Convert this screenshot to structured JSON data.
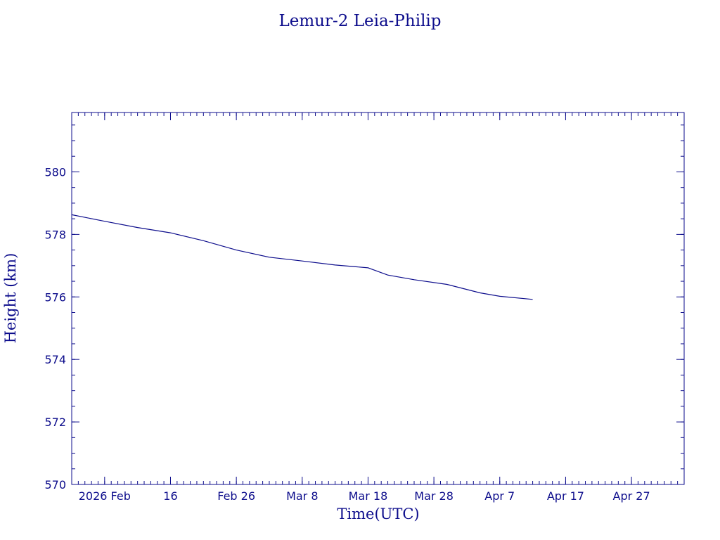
{
  "chart_data": {
    "type": "line",
    "title": "Lemur-2 Leia-Philip",
    "xlabel": "Time(UTC)",
    "ylabel": "Height (km)",
    "xlim": [
      "2026-02-01",
      "2026-05-05"
    ],
    "ylim": [
      570,
      581.9
    ],
    "x_tick_labels": [
      {
        "date": "2026-02-06",
        "label": "2026 Feb"
      },
      {
        "date": "2026-02-16",
        "label": "16"
      },
      {
        "date": "2026-02-26",
        "label": "Feb 26"
      },
      {
        "date": "2026-03-08",
        "label": "Mar  8"
      },
      {
        "date": "2026-03-18",
        "label": "Mar 18"
      },
      {
        "date": "2026-03-28",
        "label": "Mar 28"
      },
      {
        "date": "2026-04-07",
        "label": "Apr  7"
      },
      {
        "date": "2026-04-17",
        "label": "Apr 17"
      },
      {
        "date": "2026-04-27",
        "label": "Apr 27"
      }
    ],
    "y_ticks": [
      570,
      572,
      574,
      576,
      578,
      580
    ],
    "color": "#0d0d8c",
    "grid": false,
    "series": [
      {
        "x": [
          "2026-02-01",
          "2026-02-06",
          "2026-02-11",
          "2026-02-16",
          "2026-02-21",
          "2026-02-26",
          "2026-03-03",
          "2026-03-08",
          "2026-03-13",
          "2026-03-18",
          "2026-03-21",
          "2026-03-25",
          "2026-03-30",
          "2026-04-04",
          "2026-04-07",
          "2026-04-12"
        ],
        "y": [
          578.63,
          578.42,
          578.22,
          578.05,
          577.8,
          577.5,
          577.27,
          577.15,
          577.02,
          576.93,
          576.7,
          576.55,
          576.4,
          576.13,
          576.02,
          575.92
        ]
      }
    ]
  }
}
